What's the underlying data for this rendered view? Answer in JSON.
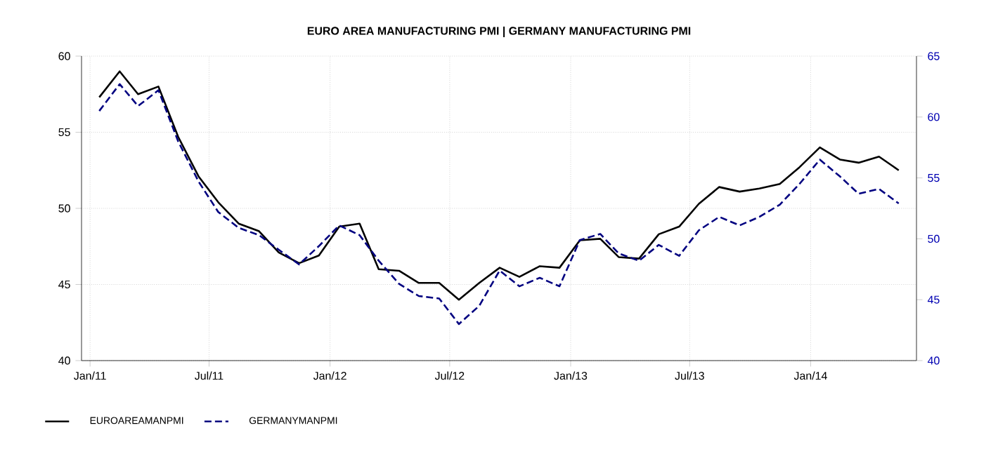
{
  "chart_data": {
    "type": "line",
    "title": "EURO AREA MANUFACTURING PMI |  GERMANY MANUFACTURING PMI",
    "x": [
      "2011-01-15",
      "2011-02-15",
      "2011-03-15",
      "2011-04-15",
      "2011-05-15",
      "2011-06-15",
      "2011-07-15",
      "2011-08-15",
      "2011-09-15",
      "2011-10-15",
      "2011-11-15",
      "2011-12-15",
      "2012-01-15",
      "2012-02-15",
      "2012-03-15",
      "2012-04-15",
      "2012-05-15",
      "2012-06-15",
      "2012-07-15",
      "2012-08-15",
      "2012-09-15",
      "2012-10-15",
      "2012-11-15",
      "2012-12-15",
      "2013-01-15",
      "2013-02-15",
      "2013-03-15",
      "2013-04-15",
      "2013-05-15",
      "2013-06-15",
      "2013-07-15",
      "2013-08-15",
      "2013-09-15",
      "2013-10-15",
      "2013-11-15",
      "2013-12-15",
      "2014-01-15",
      "2014-02-15",
      "2014-03-15",
      "2014-04-15",
      "2014-05-15"
    ],
    "series": [
      {
        "name": "EUROAREAMANPMI",
        "color": "#000000",
        "line_style": "solid",
        "values": [
          57.3,
          59.0,
          57.5,
          58.0,
          54.7,
          52.1,
          50.4,
          49.0,
          48.5,
          47.1,
          46.4,
          46.9,
          48.8,
          49.0,
          46.0,
          45.9,
          45.1,
          45.1,
          44.0,
          45.1,
          46.1,
          45.5,
          46.2,
          46.1,
          47.9,
          48.0,
          46.8,
          46.7,
          48.3,
          48.8,
          50.3,
          51.4,
          51.1,
          51.3,
          51.6,
          52.7,
          54.0,
          53.2,
          53.0,
          53.4,
          52.5
        ]
      },
      {
        "name": "GERMANYMANPMI",
        "color": "#000080",
        "line_style": "dashed",
        "axis": "y2",
        "values": [
          60.5,
          62.7,
          60.9,
          62.2,
          58.0,
          54.7,
          52.2,
          50.9,
          50.3,
          49.1,
          47.9,
          49.4,
          51.1,
          50.3,
          48.2,
          46.3,
          45.3,
          45.1,
          43.0,
          44.5,
          47.4,
          46.1,
          46.8,
          46.1,
          49.9,
          50.4,
          48.8,
          48.2,
          49.5,
          48.6,
          50.7,
          51.8,
          51.1,
          51.8,
          52.8,
          54.5,
          56.5,
          55.1,
          53.7,
          54.1,
          52.9
        ]
      }
    ],
    "xlim": [
      "2010-12-19",
      "2014-06-11"
    ],
    "xticks": [
      {
        "value": "2011-01-01",
        "label": "Jan/11"
      },
      {
        "value": "2011-07-01",
        "label": "Jul/11"
      },
      {
        "value": "2012-01-01",
        "label": "Jan/12"
      },
      {
        "value": "2012-07-01",
        "label": "Jul/12"
      },
      {
        "value": "2013-01-01",
        "label": "Jan/13"
      },
      {
        "value": "2013-07-01",
        "label": "Jul/13"
      },
      {
        "value": "2014-01-01",
        "label": "Jan/14"
      }
    ],
    "ylim": [
      40,
      60
    ],
    "yticks": [
      40,
      45,
      50,
      55,
      60
    ],
    "y2lim": [
      40,
      65
    ],
    "y2ticks": [
      40,
      45,
      50,
      55,
      60,
      65
    ],
    "grid": true,
    "legend": "bottom left"
  }
}
